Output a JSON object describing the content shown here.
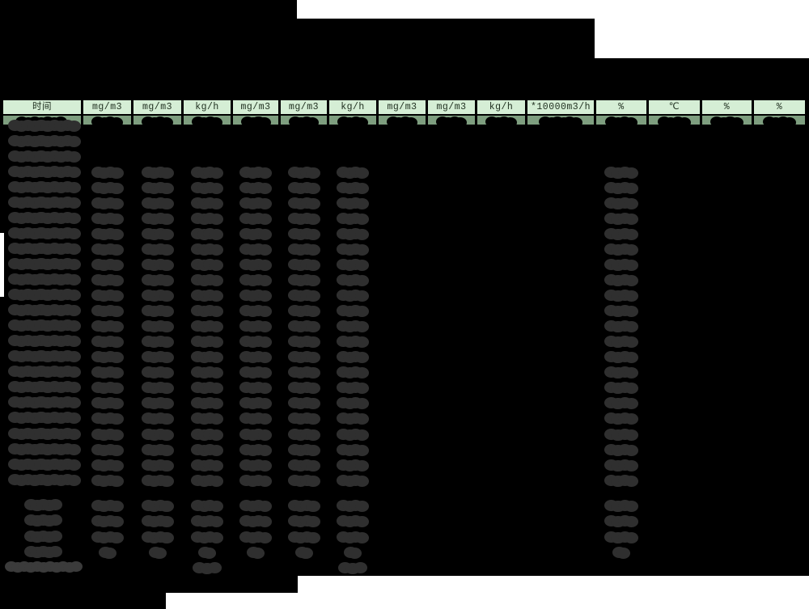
{
  "meta": {
    "description": "Heavily redacted hourly emissions monitoring report table (spreadsheet screenshot)",
    "visible_rows_note": "all cell values are blacked/greyed out redaction blobs; only unit header row is readable"
  },
  "colors": {
    "page_bg": "#000000",
    "paper_white": "#ffffff",
    "header_bg": "#d5eed5",
    "header_text": "#1e2e1e",
    "band_bg": "#7e9e7f",
    "band_blob": "#000000",
    "value_blob": "#2f2f2f",
    "footer_blob": "#3b3b3b",
    "cell_border": "#000000"
  },
  "table": {
    "columns": [
      {
        "label": "时间"
      },
      {
        "label": "mg/m3"
      },
      {
        "label": "mg/m3"
      },
      {
        "label": "kg/h"
      },
      {
        "label": "mg/m3"
      },
      {
        "label": "mg/m3"
      },
      {
        "label": "kg/h"
      },
      {
        "label": "mg/m3"
      },
      {
        "label": "mg/m3"
      },
      {
        "label": "kg/h"
      },
      {
        "label": "*10000m3/h"
      },
      {
        "label": "%"
      },
      {
        "label": "℃"
      },
      {
        "label": "%"
      },
      {
        "label": "%"
      }
    ]
  },
  "body": {
    "hour_row_count": 24,
    "time_only_row_indexes": [
      0,
      1,
      2
    ],
    "redacted_value_column_indexes": [
      1,
      2,
      3,
      4,
      5,
      6,
      11
    ],
    "summary_row_count": 4,
    "summary_small_row_index": 3,
    "footer_row": {
      "has_left_caption_blob": true,
      "redacted_value_column_indexes": [
        3,
        6
      ]
    }
  }
}
